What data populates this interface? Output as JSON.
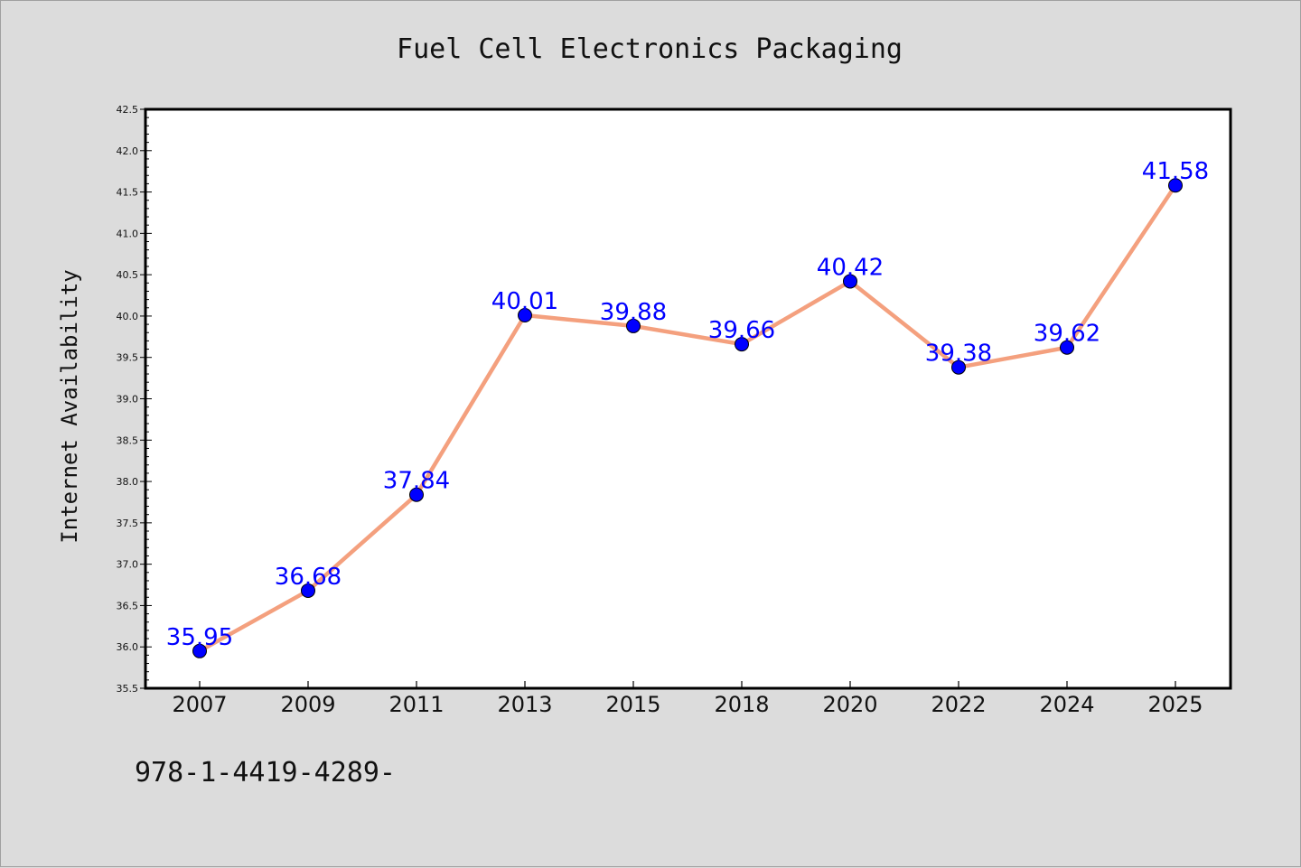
{
  "chart_data": {
    "type": "line",
    "title": "Fuel Cell Electronics Packaging",
    "xlabel": "",
    "ylabel": "Internet Availability",
    "categories": [
      "2007",
      "2009",
      "2011",
      "2013",
      "2015",
      "2018",
      "2020",
      "2022",
      "2024",
      "2025"
    ],
    "series": [
      {
        "values": [
          35.95,
          36.68,
          37.84,
          40.01,
          39.88,
          39.66,
          40.42,
          39.38,
          39.62,
          41.58
        ],
        "labels": [
          "35.95",
          "36.68",
          "37.84",
          "40.01",
          "39.88",
          "39.66",
          "40.42",
          "39.38",
          "39.62",
          "41.58"
        ],
        "line_color": "#f4a07e",
        "marker_color": "#0000ff"
      }
    ],
    "ylim": [
      35.5,
      42.5
    ],
    "yticks": [
      "35.5",
      "36.0",
      "36.5",
      "37.0",
      "37.5",
      "38.0",
      "38.5",
      "39.0",
      "39.5",
      "40.0",
      "40.5",
      "41.0",
      "41.5",
      "42.0",
      "42.5"
    ],
    "grid": false,
    "legend": "none"
  },
  "footer": {
    "text": "978-1-4419-4289-"
  },
  "colors": {
    "background": "#dcdcdc",
    "plot_background": "#ffffff",
    "data_label": "#0000ff"
  }
}
